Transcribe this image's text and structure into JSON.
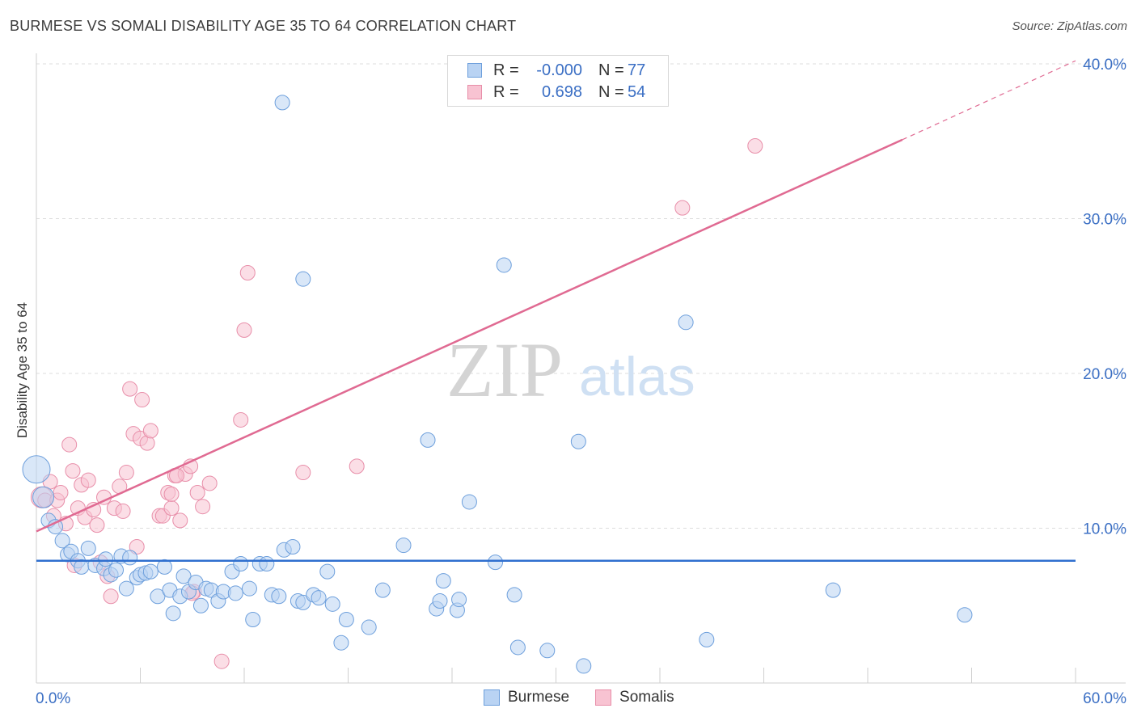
{
  "header": {
    "title": "BURMESE VS SOMALI DISABILITY AGE 35 TO 64 CORRELATION CHART",
    "source": "Source: ZipAtlas.com"
  },
  "watermark": {
    "zip": "ZIP",
    "atlas": "atlas"
  },
  "legend": {
    "rows": [
      {
        "r_label": "R =",
        "r_value": "-0.000",
        "n_label": "N =",
        "n_value": "77"
      },
      {
        "r_label": "R =",
        "r_value": "0.698",
        "n_label": "N =",
        "n_value": "54"
      }
    ]
  },
  "bottom_legend": {
    "burmese": "Burmese",
    "somalis": "Somalis"
  },
  "colors": {
    "burmese_fill": "#b9d3f3",
    "burmese_stroke": "#6d9fdc",
    "burmese_line": "#2f6fcf",
    "somali_fill": "#f8c3d2",
    "somali_stroke": "#e88ea9",
    "somali_line": "#e06a92",
    "grid": "#dddddd",
    "tick_label": "#3b6fc4"
  },
  "chart_data": {
    "type": "scatter",
    "title": "BURMESE VS SOMALI DISABILITY AGE 35 TO 64 CORRELATION CHART",
    "xlabel": "",
    "ylabel": "Disability Age 35 to 64",
    "xlim": [
      0,
      60
    ],
    "ylim": [
      0,
      40
    ],
    "x_tick_labels": [
      "0.0%",
      "60.0%"
    ],
    "y_ticks": [
      10,
      20,
      30,
      40
    ],
    "y_tick_labels": [
      "10.0%",
      "20.0%",
      "30.0%",
      "40.0%"
    ],
    "series": [
      {
        "name": "Burmese",
        "r": -0.0,
        "n": 77,
        "trend": {
          "x": [
            0,
            60
          ],
          "y": [
            7.9,
            7.9
          ]
        },
        "points": [
          [
            0.0,
            13.8
          ],
          [
            0.4,
            12.0
          ],
          [
            0.7,
            10.5
          ],
          [
            1.1,
            10.1
          ],
          [
            1.5,
            9.2
          ],
          [
            1.8,
            8.3
          ],
          [
            2.0,
            8.5
          ],
          [
            2.4,
            7.9
          ],
          [
            2.6,
            7.5
          ],
          [
            3.0,
            8.7
          ],
          [
            3.4,
            7.6
          ],
          [
            3.9,
            7.4
          ],
          [
            4.0,
            8.0
          ],
          [
            4.3,
            7.0
          ],
          [
            4.6,
            7.3
          ],
          [
            4.9,
            8.2
          ],
          [
            5.2,
            6.1
          ],
          [
            5.4,
            8.1
          ],
          [
            5.8,
            6.8
          ],
          [
            6.0,
            7.0
          ],
          [
            6.3,
            7.1
          ],
          [
            6.6,
            7.2
          ],
          [
            7.0,
            5.6
          ],
          [
            7.4,
            7.5
          ],
          [
            7.7,
            6.0
          ],
          [
            7.9,
            4.5
          ],
          [
            8.3,
            5.6
          ],
          [
            8.5,
            6.9
          ],
          [
            8.8,
            5.9
          ],
          [
            9.2,
            6.5
          ],
          [
            9.5,
            5.0
          ],
          [
            9.8,
            6.1
          ],
          [
            10.1,
            6.0
          ],
          [
            10.5,
            5.3
          ],
          [
            10.8,
            5.9
          ],
          [
            11.3,
            7.2
          ],
          [
            11.5,
            5.8
          ],
          [
            11.8,
            7.7
          ],
          [
            12.3,
            6.1
          ],
          [
            12.5,
            4.1
          ],
          [
            12.9,
            7.7
          ],
          [
            13.3,
            7.7
          ],
          [
            13.6,
            5.7
          ],
          [
            14.0,
            5.6
          ],
          [
            14.3,
            8.6
          ],
          [
            14.8,
            8.8
          ],
          [
            15.1,
            5.3
          ],
          [
            15.4,
            5.2
          ],
          [
            16.0,
            5.7
          ],
          [
            16.3,
            5.5
          ],
          [
            16.8,
            7.2
          ],
          [
            17.1,
            5.1
          ],
          [
            17.6,
            2.6
          ],
          [
            17.9,
            4.1
          ],
          [
            19.2,
            3.6
          ],
          [
            20.0,
            6.0
          ],
          [
            21.2,
            8.9
          ],
          [
            22.6,
            15.7
          ],
          [
            23.1,
            4.8
          ],
          [
            23.3,
            5.3
          ],
          [
            23.5,
            6.6
          ],
          [
            24.3,
            4.7
          ],
          [
            24.4,
            5.4
          ],
          [
            25.0,
            11.7
          ],
          [
            26.5,
            7.8
          ],
          [
            27.0,
            27.0
          ],
          [
            27.6,
            5.7
          ],
          [
            27.8,
            2.3
          ],
          [
            29.5,
            2.1
          ],
          [
            31.3,
            15.6
          ],
          [
            31.6,
            1.1
          ],
          [
            37.5,
            23.3
          ],
          [
            38.7,
            2.8
          ],
          [
            46.0,
            6.0
          ],
          [
            53.6,
            4.4
          ],
          [
            14.2,
            37.5
          ],
          [
            15.4,
            26.1
          ]
        ]
      },
      {
        "name": "Somalis",
        "r": 0.698,
        "n": 54,
        "trend": {
          "x": [
            0,
            50
          ],
          "y": [
            9.8,
            35.1
          ]
        },
        "trend_dashed": {
          "x": [
            50,
            60
          ],
          "y": [
            35.1,
            40.2
          ]
        },
        "points": [
          [
            0.3,
            12.0
          ],
          [
            0.5,
            11.8
          ],
          [
            0.8,
            13.0
          ],
          [
            1.0,
            10.8
          ],
          [
            1.2,
            11.8
          ],
          [
            1.4,
            12.3
          ],
          [
            1.7,
            10.3
          ],
          [
            1.9,
            15.4
          ],
          [
            2.1,
            13.7
          ],
          [
            2.4,
            11.3
          ],
          [
            2.6,
            12.8
          ],
          [
            2.8,
            10.7
          ],
          [
            3.0,
            13.1
          ],
          [
            3.3,
            11.2
          ],
          [
            3.5,
            10.2
          ],
          [
            3.7,
            7.8
          ],
          [
            3.9,
            12.0
          ],
          [
            4.1,
            6.9
          ],
          [
            4.3,
            5.6
          ],
          [
            4.5,
            11.3
          ],
          [
            4.8,
            12.7
          ],
          [
            5.0,
            11.1
          ],
          [
            5.2,
            13.6
          ],
          [
            5.4,
            19.0
          ],
          [
            5.6,
            16.1
          ],
          [
            5.8,
            8.8
          ],
          [
            6.0,
            15.8
          ],
          [
            6.1,
            18.3
          ],
          [
            6.4,
            15.5
          ],
          [
            6.6,
            16.3
          ],
          [
            7.1,
            10.8
          ],
          [
            7.3,
            10.8
          ],
          [
            7.6,
            12.3
          ],
          [
            7.8,
            11.3
          ],
          [
            8.0,
            13.4
          ],
          [
            8.3,
            10.5
          ],
          [
            8.6,
            13.5
          ],
          [
            8.9,
            14.0
          ],
          [
            9.1,
            5.9
          ],
          [
            9.3,
            12.3
          ],
          [
            9.6,
            11.4
          ],
          [
            10.0,
            12.9
          ],
          [
            10.7,
            1.4
          ],
          [
            11.8,
            17.0
          ],
          [
            12.0,
            22.8
          ],
          [
            12.2,
            26.5
          ],
          [
            15.4,
            13.6
          ],
          [
            18.5,
            14.0
          ],
          [
            37.3,
            30.7
          ],
          [
            41.5,
            34.7
          ],
          [
            9.0,
            5.8
          ],
          [
            7.8,
            12.2
          ],
          [
            2.2,
            7.6
          ],
          [
            8.1,
            13.4
          ]
        ]
      }
    ]
  }
}
